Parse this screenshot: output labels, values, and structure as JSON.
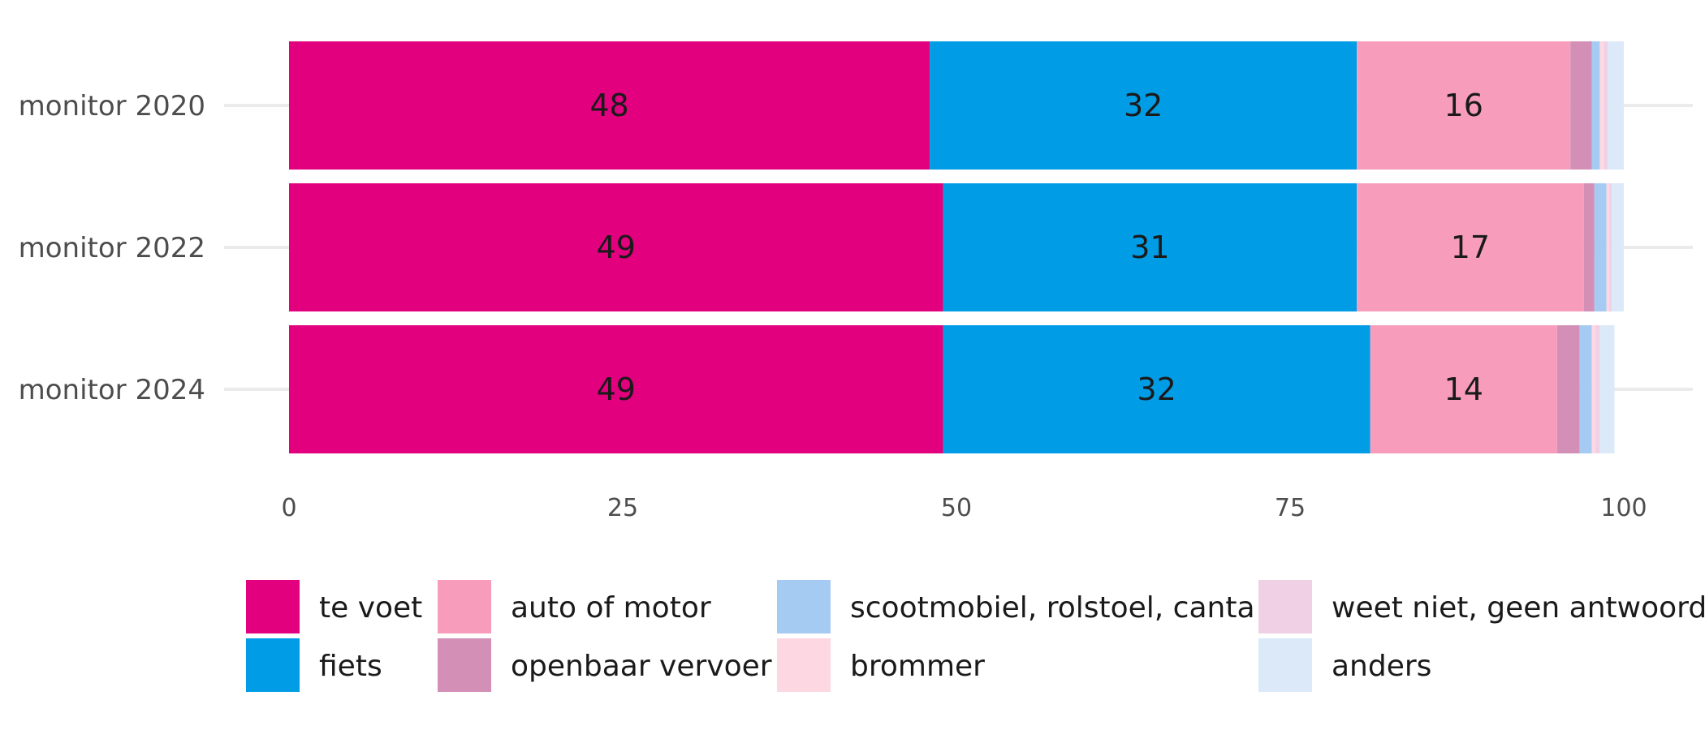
{
  "chart_data": {
    "type": "bar",
    "orientation": "horizontal",
    "stacked": true,
    "categories": [
      "monitor 2020",
      "monitor 2022",
      "monitor 2024"
    ],
    "xlim": [
      0,
      100
    ],
    "xticks": [
      0,
      25,
      50,
      75,
      100
    ],
    "grid": true,
    "legend_position": "bottom",
    "series": [
      {
        "name": "te voet",
        "color": "#e3007f",
        "values": [
          48,
          49,
          49
        ],
        "labels": [
          "48",
          "49",
          "49"
        ]
      },
      {
        "name": "fiets",
        "color": "#009de6",
        "values": [
          32,
          31,
          32
        ],
        "labels": [
          "32",
          "31",
          "32"
        ]
      },
      {
        "name": "auto of motor",
        "color": "#f79dbb",
        "values": [
          16,
          17,
          14
        ],
        "labels": [
          "16",
          "17",
          "14"
        ]
      },
      {
        "name": "openbaar vervoer",
        "color": "#d48fb7",
        "values": [
          1.6,
          0.8,
          1.7
        ],
        "labels": [
          "",
          "",
          ""
        ]
      },
      {
        "name": "scootmobiel, rolstoel, canta",
        "color": "#a6cbf3",
        "values": [
          0.6,
          0.9,
          0.9
        ],
        "labels": [
          "",
          "",
          ""
        ]
      },
      {
        "name": "brommer",
        "color": "#fdd8e3",
        "values": [
          0.3,
          0.2,
          0.3
        ],
        "labels": [
          "",
          "",
          ""
        ]
      },
      {
        "name": "weet niet, geen antwoord",
        "color": "#f0d0e4",
        "values": [
          0.3,
          0.2,
          0.3
        ],
        "labels": [
          "",
          "",
          ""
        ]
      },
      {
        "name": "anders",
        "color": "#dbe9f9",
        "values": [
          1.2,
          0.9,
          1.1
        ],
        "labels": [
          "",
          "",
          ""
        ]
      }
    ],
    "legend_layout": [
      [
        "te voet",
        "fiets"
      ],
      [
        "auto of motor",
        "openbaar vervoer"
      ],
      [
        "scootmobiel, rolstoel, canta",
        "brommer"
      ],
      [
        "weet niet, geen antwoord",
        "anders"
      ]
    ]
  }
}
